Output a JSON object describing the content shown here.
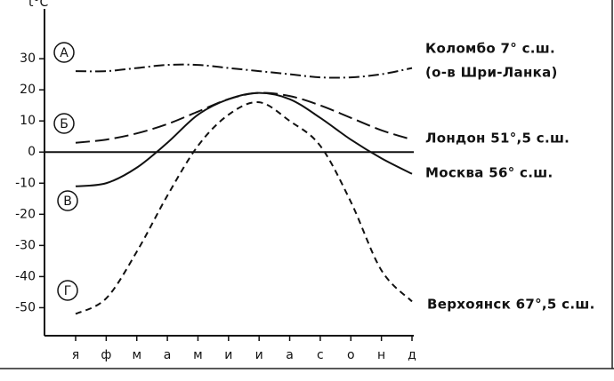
{
  "chart_data": {
    "type": "line",
    "y_label": "t°C",
    "categories": [
      "я",
      "ф",
      "м",
      "а",
      "м",
      "и",
      "и",
      "а",
      "с",
      "о",
      "н",
      "д"
    ],
    "ylim": [
      -59,
      46
    ],
    "yticks": [
      -50,
      -40,
      -30,
      -20,
      -10,
      0,
      10,
      20,
      30
    ],
    "series": [
      {
        "name": "Коломбо 7° с.ш.",
        "note": "(о-в Шри-Ланка)",
        "marker": "А",
        "color": "#111",
        "dash": "dashdot",
        "values": [
          26,
          26,
          27,
          28,
          28,
          27,
          26,
          25,
          24,
          24,
          25,
          27
        ]
      },
      {
        "name": "Лондон 51°,5 с.ш.",
        "marker": "Б",
        "color": "#111",
        "dash": "long",
        "values": [
          3,
          4,
          6,
          9,
          13,
          17,
          19,
          18,
          15,
          11,
          7,
          4
        ]
      },
      {
        "name": "Москва 56° с.ш.",
        "marker": "В",
        "color": "#111",
        "dash": "solid",
        "values": [
          -11,
          -10,
          -5,
          3,
          12,
          17,
          19,
          17,
          11,
          4,
          -2,
          -7
        ]
      },
      {
        "name": "Верхоянск 67°,5 с.ш.",
        "marker": "Г",
        "color": "#111",
        "dash": "short",
        "values": [
          -52,
          -47,
          -32,
          -14,
          2,
          12,
          16,
          10,
          2,
          -16,
          -38,
          -48
        ]
      }
    ]
  }
}
